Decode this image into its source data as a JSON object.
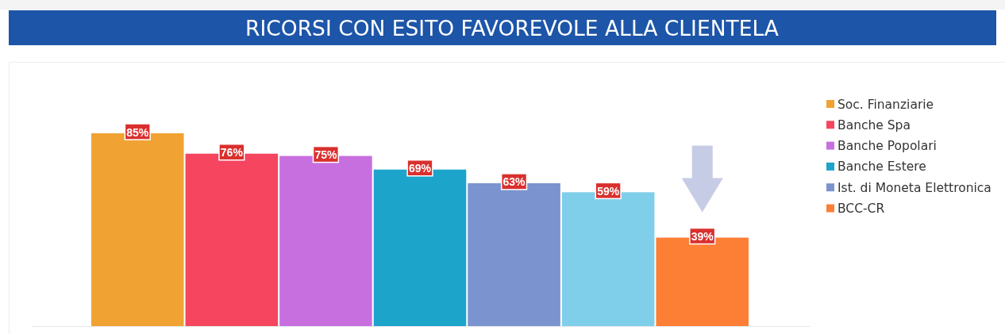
{
  "chart_data": {
    "type": "bar",
    "title": "RICORSI CON ESITO FAVOREVOLE ALLA CLIENTELA",
    "categories": [
      null
    ],
    "series": [
      {
        "name": "Soc. Finanziarie",
        "color": "#f0a332",
        "values": [
          85
        ],
        "value_labels": [
          "85%"
        ]
      },
      {
        "name": "Banche Spa",
        "color": "#f5455f",
        "values": [
          76
        ],
        "value_labels": [
          "76%"
        ]
      },
      {
        "name": "Banche Popolari",
        "color": "#c86fe0",
        "values": [
          75
        ],
        "value_labels": [
          "75%"
        ]
      },
      {
        "name": "Banche Estere",
        "color": "#1ca4cb",
        "values": [
          69
        ],
        "value_labels": [
          "69%"
        ]
      },
      {
        "name": "Ist. di Moneta Elettronica",
        "color": "#7b93cf",
        "values": [
          63
        ],
        "value_labels": [
          "63%"
        ]
      },
      {
        "color": "#80cfea",
        "values": [
          59
        ],
        "value_labels": [
          "59%"
        ]
      },
      {
        "name": "BCC-CR",
        "color": "#fd7f35",
        "values": [
          39
        ],
        "value_labels": [
          "39%"
        ]
      }
    ],
    "legend": "right"
  }
}
